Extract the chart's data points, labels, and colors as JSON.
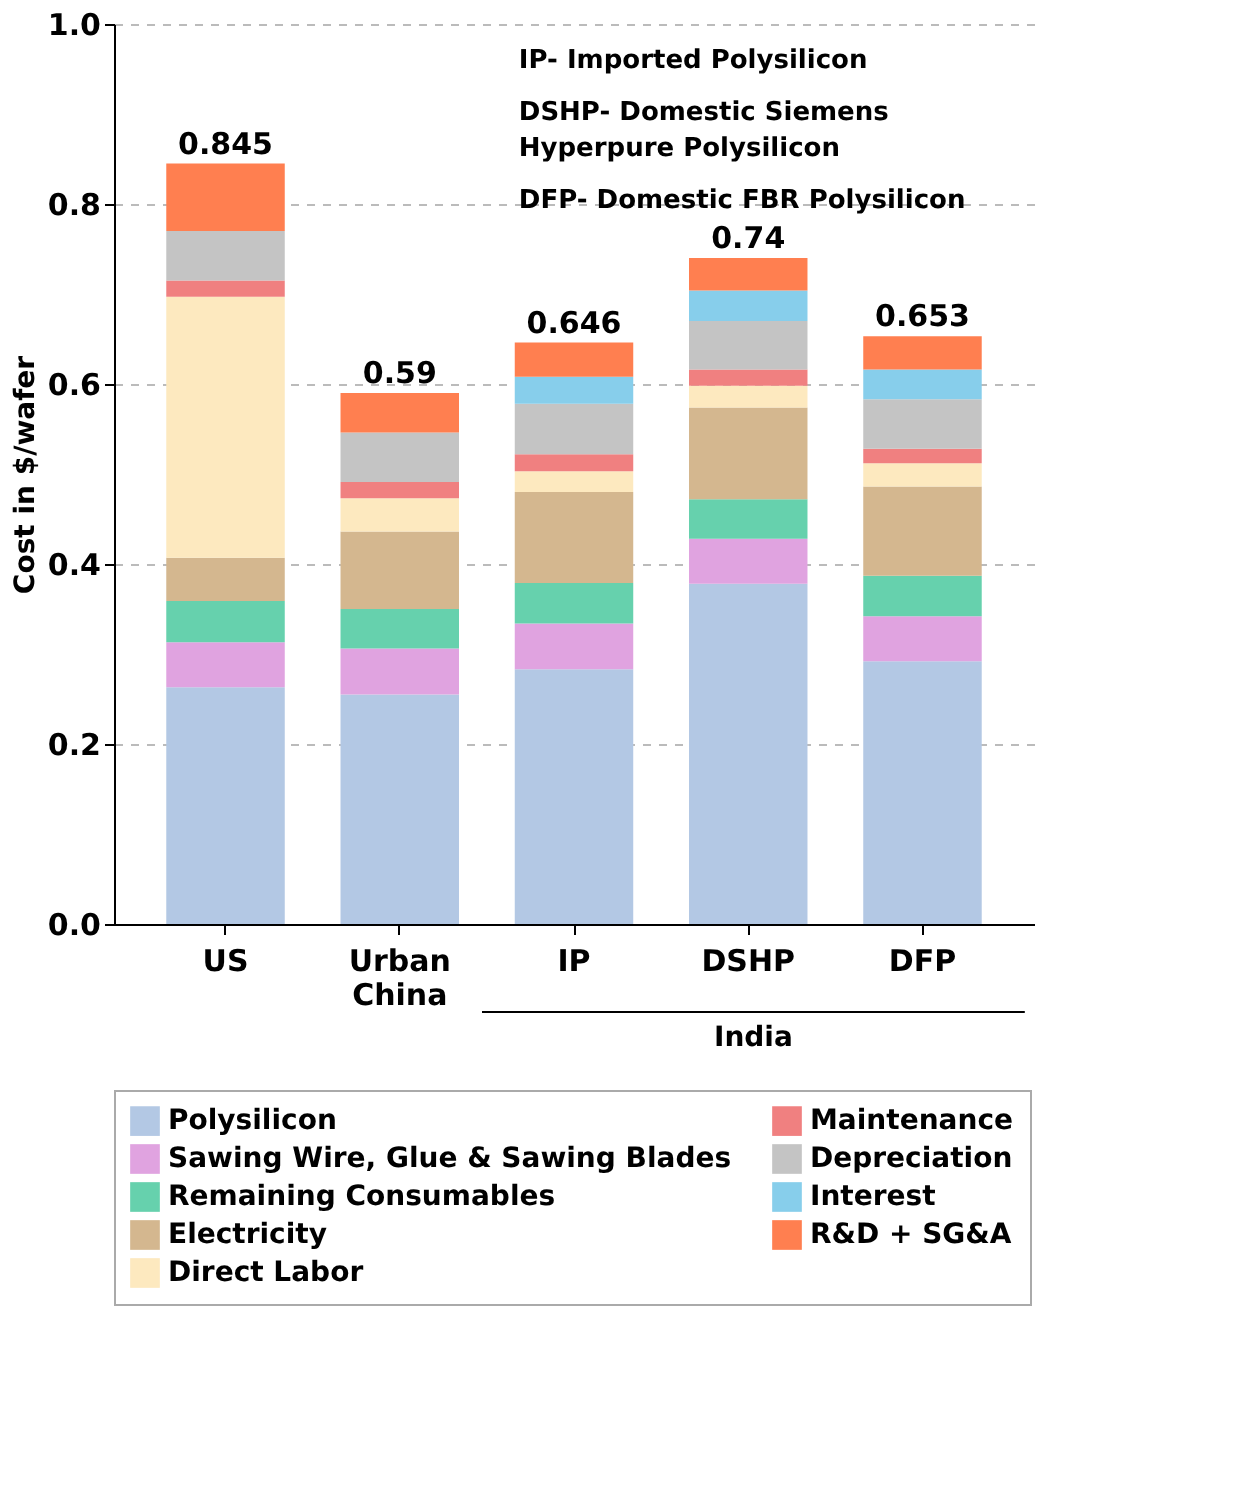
{
  "chart_data": {
    "type": "bar",
    "stacked": true,
    "ylabel": "Cost in $/wafer",
    "categories": [
      "US",
      "Urban China",
      "IP",
      "DSHP",
      "DFP"
    ],
    "series": [
      {
        "name": "Polysilicon",
        "color": "#b3c8e4",
        "values": [
          0.263,
          0.255,
          0.283,
          0.378,
          0.292
        ]
      },
      {
        "name": "Sawing Wire, Glue & Sawing Blades",
        "color": "#e0a3e0",
        "values": [
          0.05,
          0.051,
          0.051,
          0.05,
          0.05
        ]
      },
      {
        "name": "Remaining Consumables",
        "color": "#66d1ad",
        "values": [
          0.046,
          0.044,
          0.045,
          0.044,
          0.045
        ]
      },
      {
        "name": "Electricity",
        "color": "#d4b78f",
        "values": [
          0.048,
          0.086,
          0.101,
          0.102,
          0.099
        ]
      },
      {
        "name": "Direct Labor",
        "color": "#fde9bf",
        "values": [
          0.29,
          0.037,
          0.023,
          0.024,
          0.026
        ]
      },
      {
        "name": "Maintenance",
        "color": "#f08080",
        "values": [
          0.018,
          0.018,
          0.019,
          0.018,
          0.016
        ]
      },
      {
        "name": "Depreciation",
        "color": "#c4c4c4",
        "values": [
          0.055,
          0.055,
          0.056,
          0.054,
          0.055
        ]
      },
      {
        "name": "Interest",
        "color": "#87ceeb",
        "values": [
          null,
          null,
          0.03,
          0.034,
          0.033
        ]
      },
      {
        "name": "R&D + SG&A",
        "color": "#ff7f50",
        "values": [
          0.075,
          0.044,
          0.038,
          0.036,
          0.037
        ]
      }
    ],
    "totals": [
      "0.845",
      "0.59",
      "0.646",
      "0.74",
      "0.653"
    ],
    "ylim": [
      0,
      1.0
    ],
    "yticks": [
      {
        "value": 0,
        "label": "0.0"
      },
      {
        "value": 0.2,
        "label": "0.2"
      },
      {
        "value": 0.4,
        "label": "0.4"
      },
      {
        "value": 0.6,
        "label": "0.6"
      },
      {
        "value": 0.8,
        "label": "0.8"
      },
      {
        "value": 1.0,
        "label": "1.0"
      }
    ],
    "grid": "y",
    "legend": "bottom",
    "annotations": [
      "IP- Imported Polysilicon",
      "DSHP- Domestic Siemens\n Hyperpure Polysilicon",
      "DFP- Domestic FBR Polysilicon",
      "India"
    ]
  }
}
